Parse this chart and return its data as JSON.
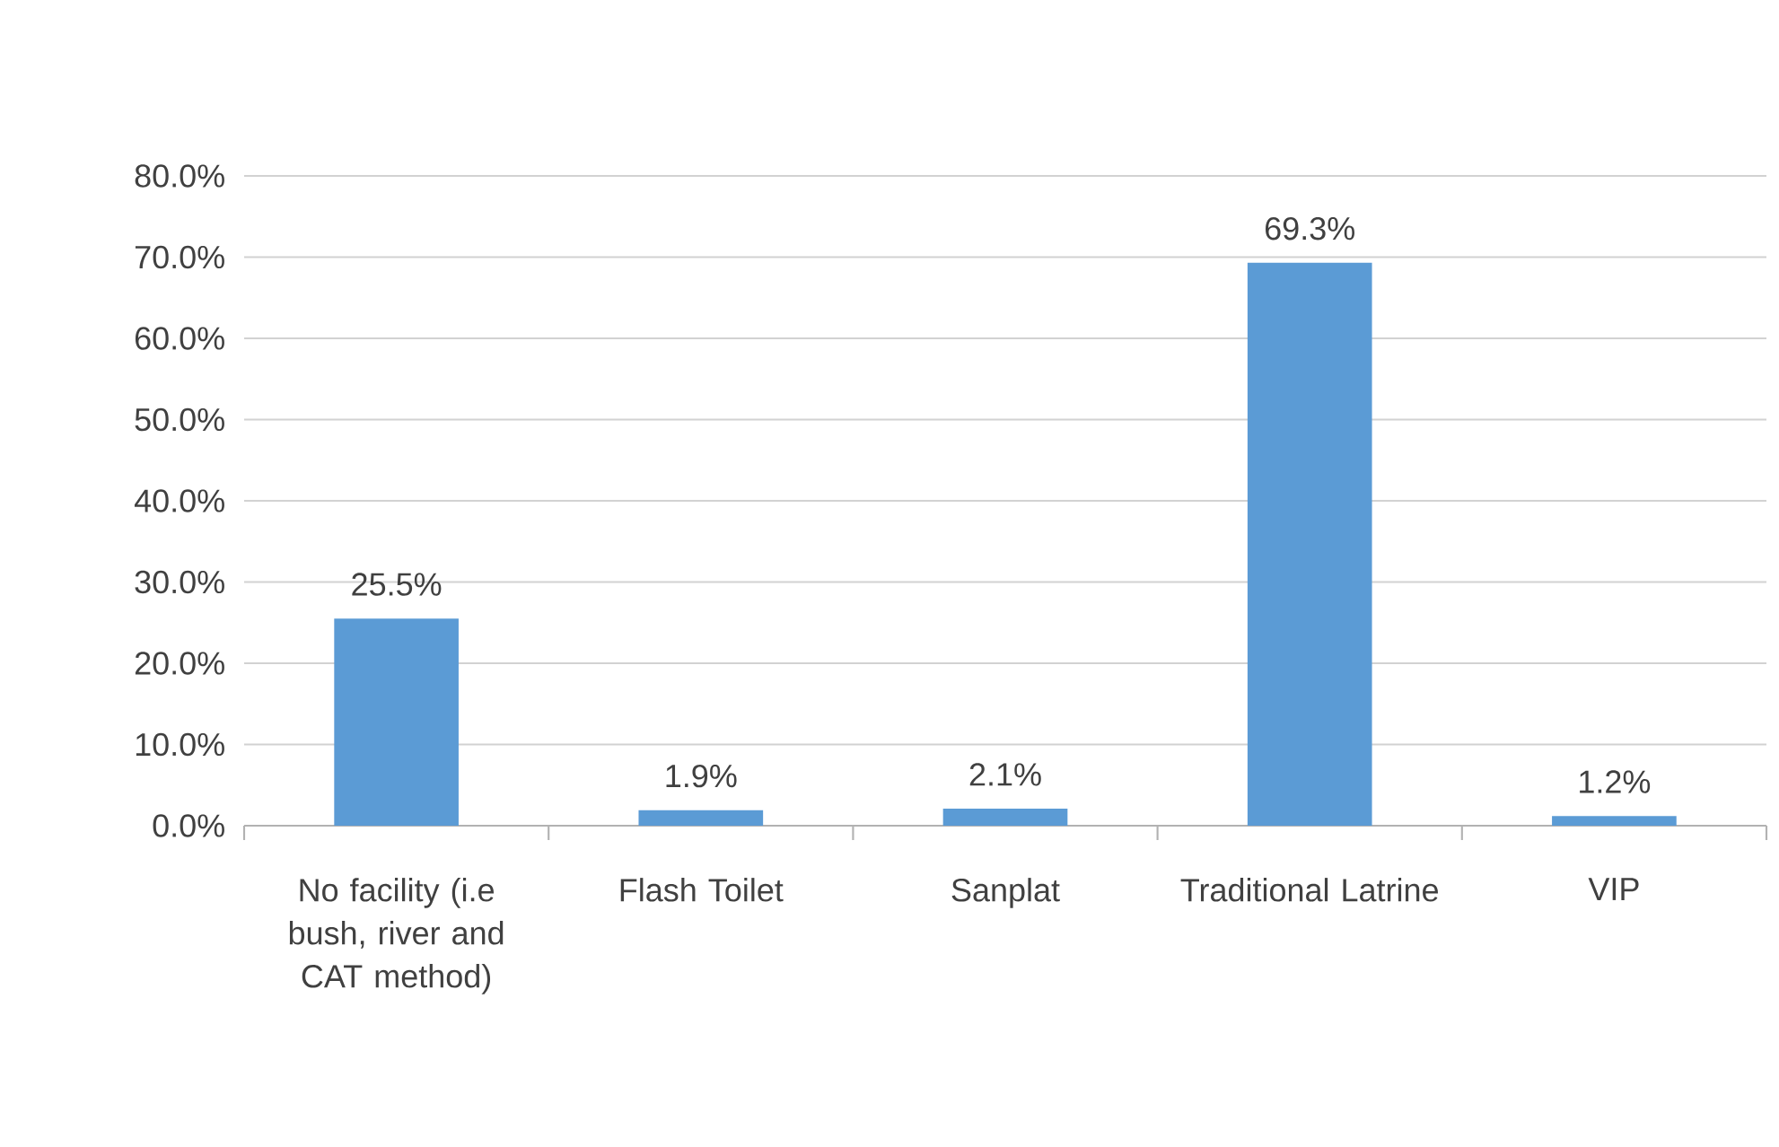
{
  "chart_data": {
    "type": "bar",
    "categories": [
      "No facility (i.e bush, river and CAT method)",
      "Flash Toilet",
      "Sanplat",
      "Traditional Latrine",
      "VIP"
    ],
    "values": [
      25.5,
      1.9,
      2.1,
      69.3,
      1.2
    ],
    "value_labels": [
      "25.5%",
      "1.9%",
      "2.1%",
      "69.3%",
      "1.2%"
    ],
    "color": "#5b9bd5",
    "ylim": [
      0,
      80
    ],
    "yticks": [
      {
        "value": 0,
        "label": "0.0%"
      },
      {
        "value": 10,
        "label": "10.0%"
      },
      {
        "value": 20,
        "label": "20.0%"
      },
      {
        "value": 30,
        "label": "30.0%"
      },
      {
        "value": 40,
        "label": "40.0%"
      },
      {
        "value": 50,
        "label": "50.0%"
      },
      {
        "value": 60,
        "label": "60.0%"
      },
      {
        "value": 70,
        "label": "70.0%"
      },
      {
        "value": 80,
        "label": "80.0%"
      }
    ],
    "grid": "y"
  }
}
